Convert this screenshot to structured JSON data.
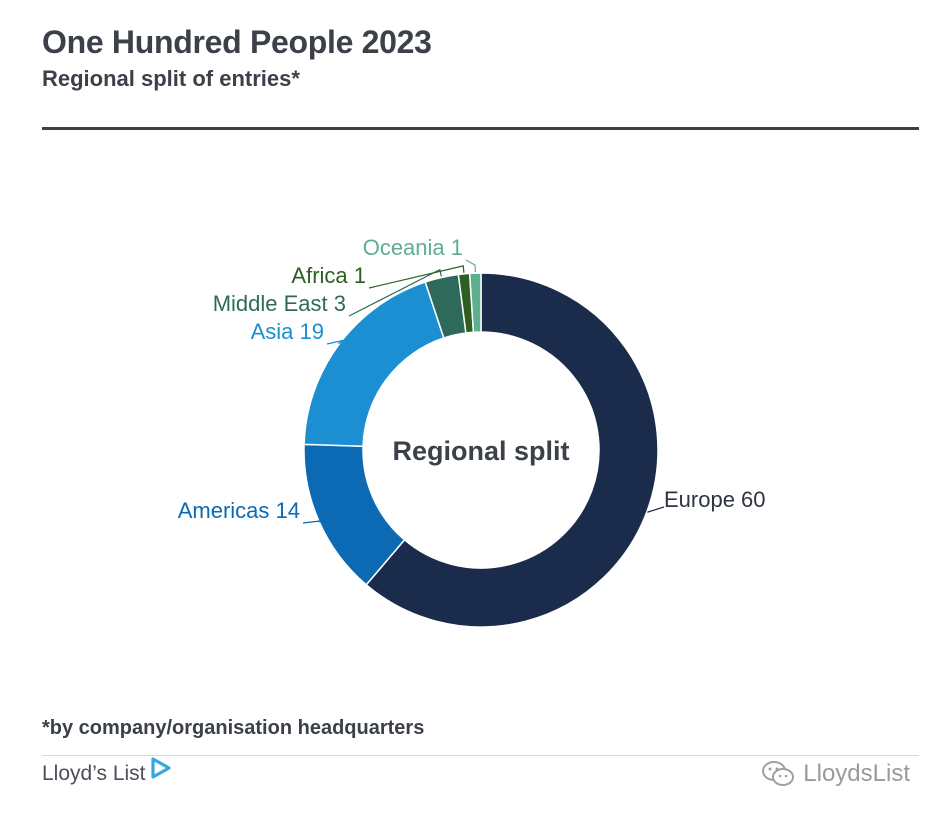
{
  "header": {
    "title": "One Hundred People 2023",
    "subtitle": "Regional split of entries*"
  },
  "chart_data": {
    "type": "pie",
    "donut": true,
    "center_label": "Regional split",
    "slices": [
      {
        "label": "Europe",
        "value": 60,
        "color": "#1b2b4b"
      },
      {
        "label": "Americas",
        "value": 14,
        "color": "#0b6ab3"
      },
      {
        "label": "Asia",
        "value": 19,
        "color": "#1b8fd2"
      },
      {
        "label": "Middle East",
        "value": 3,
        "color": "#2e6a5c"
      },
      {
        "label": "Africa",
        "value": 1,
        "color": "#2d5e22"
      },
      {
        "label": "Oceania",
        "value": 1,
        "color": "#5fae8d"
      }
    ]
  },
  "footnote": "*by company/organisation headquarters",
  "brand": {
    "name": "Lloyd’s List",
    "accent": "#35a7e0",
    "watermark": "LloydsList"
  }
}
